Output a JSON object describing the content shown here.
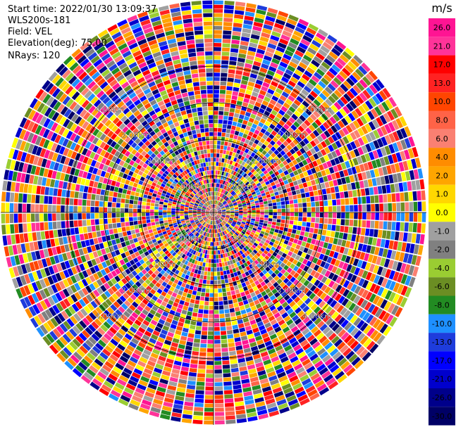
{
  "header": {
    "start_time": "Start time: 2022/01/30 13:09:37",
    "instrument": "WLS200s-181",
    "field": "Field: VEL",
    "elevation": "Elevation(deg): 75.00",
    "nrays": "NRays: 120"
  },
  "colorbar": {
    "unit": "m/s",
    "ticks": [
      "26.0",
      "21.0",
      "17.0",
      "13.0",
      "10.0",
      "8.0",
      "6.0",
      "4.0",
      "2.0",
      "1.0",
      "0.0",
      "-1.0",
      "-2.0",
      "-4.0",
      "-6.0",
      "-8.0",
      "-10.0",
      "-13.0",
      "-17.0",
      "-21.0",
      "-26.0",
      "-30.0"
    ],
    "colors": [
      "#ff1493",
      "#ff3399",
      "#ff0000",
      "#ff2222",
      "#ff4500",
      "#ff6347",
      "#fa8072",
      "#ff8c00",
      "#ffa500",
      "#ffd700",
      "#ffff00",
      "#a0a0a0",
      "#808080",
      "#9acd32",
      "#6b8e23",
      "#228b22",
      "#1e90ff",
      "#1e3cdc",
      "#0000ff",
      "#0000cd",
      "#00008b",
      "#000066"
    ]
  },
  "chart_data": {
    "type": "heatmap",
    "projection": "polar PPI",
    "field": "VEL",
    "unit": "m/s",
    "nrays": 120,
    "range_rings_km": [
      "1.00km",
      "2.00km",
      "3.00km",
      "4.00km"
    ],
    "max_range_km": 4.9,
    "gates_per_ray": 50,
    "vmin": -30.0,
    "vmax": 26.0
  }
}
